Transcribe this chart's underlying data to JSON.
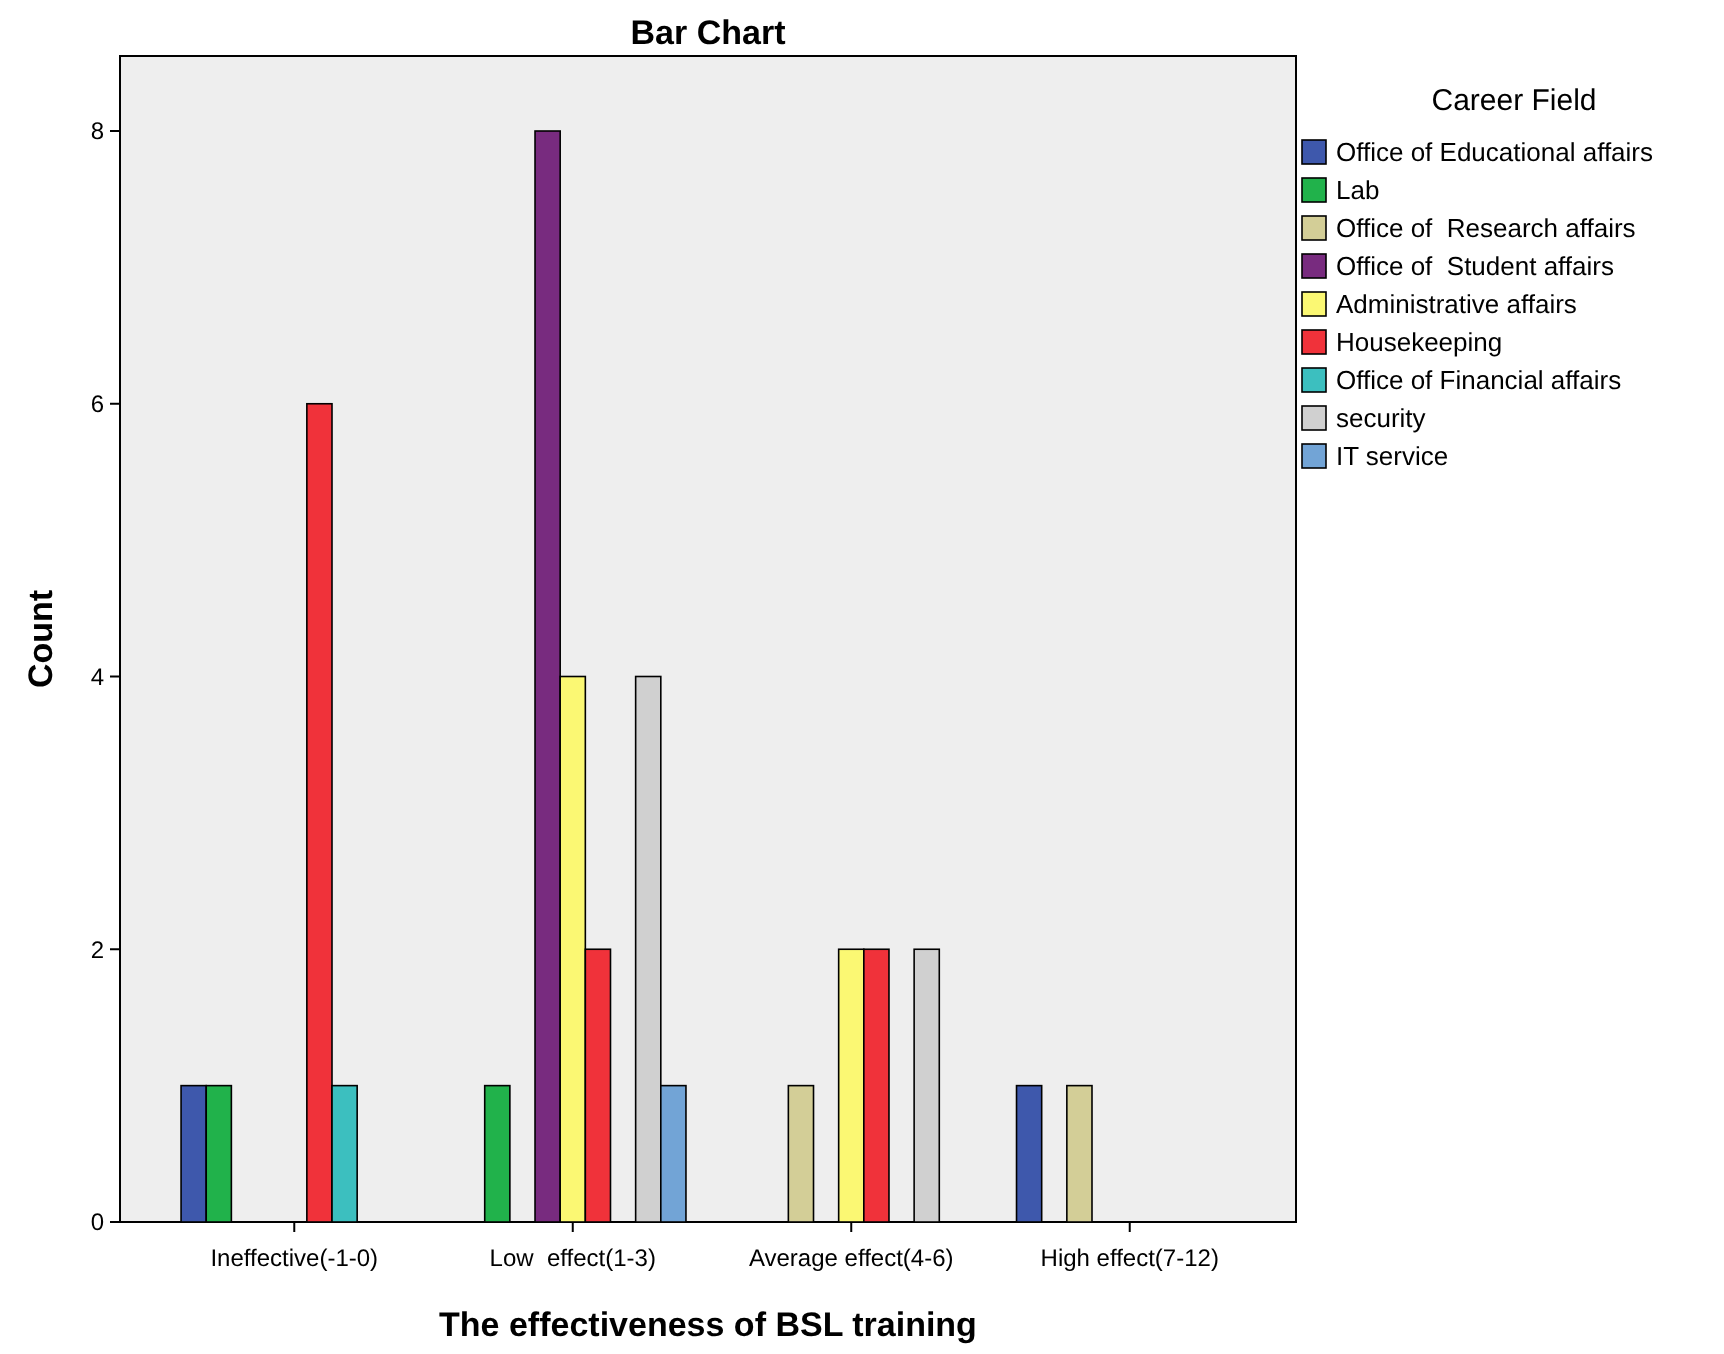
{
  "chart_data": {
    "type": "bar",
    "title": "Bar Chart",
    "xlabel": "The effectiveness of BSL training",
    "ylabel": "Count",
    "legend_title": "Career Field",
    "legend": "right",
    "categories": [
      "Ineffective(-1-0)",
      "Low  effect(1-3)",
      "Average effect(4-6)",
      "High effect(7-12)"
    ],
    "ylim": [
      0,
      8.55
    ],
    "yticks": [
      0,
      2,
      4,
      6,
      8
    ],
    "series": [
      {
        "name": "Office of Educational affairs",
        "color": "#3e58ac",
        "values": [
          1,
          null,
          null,
          1
        ]
      },
      {
        "name": "Lab",
        "color": "#21b24b",
        "values": [
          1,
          1,
          null,
          null
        ]
      },
      {
        "name": "Office of  Research affairs",
        "color": "#d3ce97",
        "values": [
          null,
          null,
          1,
          1
        ]
      },
      {
        "name": "Office of  Student affairs",
        "color": "#782b7f",
        "values": [
          null,
          8,
          null,
          null
        ]
      },
      {
        "name": "Administrative affairs",
        "color": "#fbf873",
        "values": [
          null,
          4,
          2,
          null
        ]
      },
      {
        "name": "Housekeeping",
        "color": "#f0323a",
        "values": [
          6,
          2,
          2,
          null
        ]
      },
      {
        "name": "Office of Financial affairs",
        "color": "#3cbfbf",
        "values": [
          1,
          null,
          null,
          null
        ]
      },
      {
        "name": "security",
        "color": "#d0d0d0",
        "values": [
          null,
          4,
          2,
          null
        ]
      },
      {
        "name": "IT service",
        "color": "#72a4d6",
        "values": [
          null,
          1,
          null,
          null
        ]
      }
    ]
  }
}
